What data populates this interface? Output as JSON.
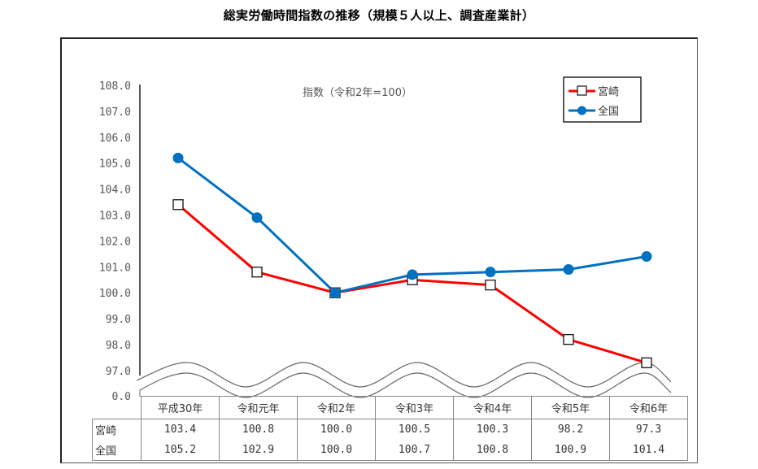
{
  "chart_data": {
    "type": "line",
    "title": "総実労働時間指数の推移（規模５人以上、調査産業計）",
    "subtitle": "指数（令和2年=100）",
    "xlabel": "",
    "ylabel": "",
    "categories": [
      "平成30年",
      "令和元年",
      "令和2年",
      "令和3年",
      "令和4年",
      "令和5年",
      "令和6年"
    ],
    "series": [
      {
        "name": "宮崎",
        "color": "#ff0000",
        "marker": "open-square",
        "values": [
          103.4,
          100.8,
          100.0,
          100.5,
          100.3,
          98.2,
          97.3
        ]
      },
      {
        "name": "全国",
        "color": "#0070c0",
        "marker": "filled-circle",
        "values": [
          105.2,
          102.9,
          100.0,
          100.7,
          100.8,
          100.9,
          101.4
        ]
      }
    ],
    "ylim": [
      97.0,
      108.0
    ],
    "yticks": [
      "108.0",
      "107.0",
      "106.0",
      "105.0",
      "104.0",
      "103.0",
      "102.0",
      "101.0",
      "100.0",
      "99.0",
      "98.0",
      "97.0",
      "0.0"
    ],
    "axis_break": true,
    "grid": false,
    "legend_position": "top-right"
  },
  "legend": {
    "items": [
      {
        "label": "宮崎"
      },
      {
        "label": "全国"
      }
    ]
  },
  "table": {
    "header": [
      "平成30年",
      "令和元年",
      "令和2年",
      "令和3年",
      "令和4年",
      "令和5年",
      "令和6年"
    ],
    "rows": [
      {
        "label": "宮崎",
        "cells": [
          "103.4",
          "100.8",
          "100.0",
          "100.5",
          "100.3",
          "98.2",
          "97.3"
        ]
      },
      {
        "label": "全国",
        "cells": [
          "105.2",
          "102.9",
          "100.0",
          "100.7",
          "100.8",
          "100.9",
          "101.4"
        ]
      }
    ]
  }
}
